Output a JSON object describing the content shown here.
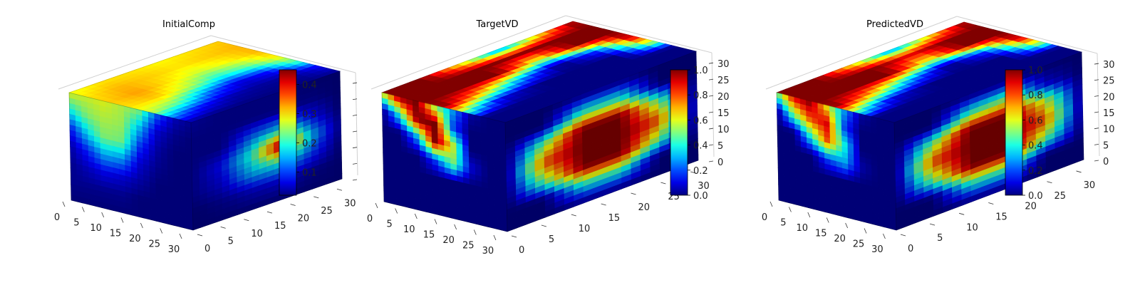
{
  "chart_data": [
    {
      "type": "3d-voxel",
      "title": "InitialComp",
      "xticks": [
        "0",
        "5",
        "10",
        "15",
        "20",
        "25",
        "30"
      ],
      "yticks": [
        "0",
        "5",
        "10",
        "15",
        "20",
        "25",
        "30"
      ],
      "zticks": [
        "",
        "",
        "",
        "",
        "",
        "",
        ""
      ],
      "xlim": [
        0,
        32
      ],
      "ylim": [
        0,
        32
      ],
      "zlim": [
        0,
        32
      ],
      "colormap": "jet",
      "colorbar": {
        "ticks": [
          "0.1",
          "0.2",
          "0.3",
          "0.4"
        ],
        "tick_values": [
          0.1,
          0.2,
          0.3,
          0.4
        ],
        "range": [
          0.02,
          0.45
        ]
      },
      "faces": {
        "top": [
          [
            0.28,
            0.3,
            0.31,
            0.3,
            0.27,
            0.14,
            0.03
          ],
          [
            0.3,
            0.32,
            0.33,
            0.31,
            0.22,
            0.08,
            0.02
          ],
          [
            0.3,
            0.31,
            0.3,
            0.26,
            0.12,
            0.04,
            0.02
          ],
          [
            0.29,
            0.3,
            0.27,
            0.19,
            0.06,
            0.03,
            0.02
          ],
          [
            0.3,
            0.31,
            0.29,
            0.22,
            0.08,
            0.03,
            0.02
          ],
          [
            0.31,
            0.32,
            0.32,
            0.3,
            0.22,
            0.07,
            0.03
          ]
        ],
        "front": [
          [
            0.28,
            0.27,
            0.28,
            0.26,
            0.24,
            0.12,
            0.05,
            0.03
          ],
          [
            0.18,
            0.24,
            0.26,
            0.25,
            0.16,
            0.06,
            0.03,
            0.02
          ],
          [
            0.08,
            0.17,
            0.24,
            0.23,
            0.1,
            0.04,
            0.02,
            0.02
          ],
          [
            0.04,
            0.09,
            0.15,
            0.14,
            0.06,
            0.03,
            0.02,
            0.02
          ],
          [
            0.03,
            0.05,
            0.07,
            0.06,
            0.04,
            0.02,
            0.02,
            0.02
          ],
          [
            0.03,
            0.03,
            0.03,
            0.03,
            0.02,
            0.02,
            0.02,
            0.02
          ],
          [
            0.02,
            0.02,
            0.02,
            0.02,
            0.02,
            0.02,
            0.02,
            0.02
          ]
        ],
        "side": [
          [
            0.04,
            0.03,
            0.03,
            0.03,
            0.02,
            0.02
          ],
          [
            0.03,
            0.03,
            0.03,
            0.03,
            0.03,
            0.02
          ],
          [
            0.03,
            0.03,
            0.12,
            0.16,
            0.08,
            0.02
          ],
          [
            0.03,
            0.08,
            0.2,
            0.45,
            0.16,
            0.03
          ],
          [
            0.03,
            0.06,
            0.15,
            0.18,
            0.1,
            0.02
          ],
          [
            0.02,
            0.03,
            0.05,
            0.06,
            0.03,
            0.02
          ],
          [
            0.02,
            0.02,
            0.02,
            0.02,
            0.02,
            0.02
          ]
        ]
      }
    },
    {
      "type": "3d-voxel",
      "title": "TargetVD",
      "xticks": [
        "0",
        "5",
        "10",
        "15",
        "20",
        "25",
        "30"
      ],
      "yticks": [
        "0",
        "5",
        "10",
        "15",
        "20",
        "25",
        "30"
      ],
      "zticks": [
        "0",
        "5",
        "10",
        "15",
        "20",
        "25",
        "30"
      ],
      "xlim": [
        0,
        32
      ],
      "ylim": [
        0,
        32
      ],
      "zlim": [
        0,
        32
      ],
      "colormap": "jet",
      "colorbar": {
        "ticks": [
          "0.0",
          "0.2",
          "0.4",
          "0.6",
          "0.8",
          "1.0"
        ],
        "tick_values": [
          0,
          0.2,
          0.4,
          0.6,
          0.8,
          1.0
        ],
        "range": [
          0,
          1
        ]
      },
      "faces": {
        "top": [
          [
            1.0,
            1.0,
            1.0,
            1.0,
            0.5,
            0.0,
            0.0
          ],
          [
            1.0,
            1.0,
            1.0,
            0.7,
            0.1,
            0.0,
            0.0
          ],
          [
            0.6,
            1.0,
            1.0,
            0.3,
            0.0,
            0.0,
            0.0
          ],
          [
            0.2,
            1.0,
            0.6,
            0.0,
            0.0,
            0.0,
            0.0
          ],
          [
            0.6,
            1.0,
            1.0,
            0.2,
            0.0,
            0.0,
            0.0
          ],
          [
            1.0,
            1.0,
            1.0,
            1.0,
            0.6,
            0.0,
            0.0
          ]
        ],
        "front": [
          [
            0.6,
            1.0,
            1.0,
            0.5,
            0.3,
            0.05,
            0.0,
            0.0
          ],
          [
            0.0,
            0.4,
            1.0,
            1.0,
            0.2,
            0.0,
            0.0,
            0.0
          ],
          [
            0.0,
            0.0,
            0.3,
            1.0,
            0.6,
            0.0,
            0.0,
            0.0
          ],
          [
            0.0,
            0.0,
            0.0,
            0.2,
            0.5,
            0.1,
            0.0,
            0.0
          ],
          [
            0.0,
            0.0,
            0.0,
            0.0,
            0.0,
            0.0,
            0.0,
            0.0
          ],
          [
            0.0,
            0.0,
            0.0,
            0.0,
            0.0,
            0.0,
            0.0,
            0.0
          ],
          [
            0.0,
            0.0,
            0.0,
            0.0,
            0.0,
            0.0,
            0.0,
            0.0
          ]
        ],
        "side": [
          [
            0.0,
            0.0,
            0.0,
            0.0,
            0.0,
            0.0
          ],
          [
            0.0,
            0.0,
            0.4,
            0.4,
            0.0,
            0.0
          ],
          [
            0.0,
            0.5,
            1.0,
            1.0,
            0.5,
            0.0
          ],
          [
            0.0,
            0.8,
            1.0,
            1.0,
            0.8,
            0.0
          ],
          [
            0.0,
            0.5,
            1.0,
            1.0,
            0.5,
            0.0
          ],
          [
            0.0,
            0.0,
            0.4,
            0.4,
            0.0,
            0.0
          ],
          [
            0.0,
            0.0,
            0.0,
            0.0,
            0.0,
            0.0
          ]
        ]
      }
    },
    {
      "type": "3d-voxel",
      "title": "PredictedVD",
      "xticks": [
        "0",
        "5",
        "10",
        "15",
        "20",
        "25",
        "30"
      ],
      "yticks": [
        "0",
        "5",
        "10",
        "15",
        "20",
        "25",
        "30"
      ],
      "zticks": [
        "0",
        "5",
        "10",
        "15",
        "20",
        "25",
        "30"
      ],
      "xlim": [
        0,
        32
      ],
      "ylim": [
        0,
        32
      ],
      "zlim": [
        0,
        32
      ],
      "colormap": "jet",
      "colorbar": {
        "ticks": [
          "0.0",
          "0.2",
          "0.4",
          "0.6",
          "0.8",
          "1.0"
        ],
        "tick_values": [
          0,
          0.2,
          0.4,
          0.6,
          0.8,
          1.0
        ],
        "range": [
          0,
          1
        ]
      },
      "faces": {
        "top": [
          [
            1.0,
            1.0,
            1.0,
            1.0,
            0.5,
            0.0,
            0.0
          ],
          [
            1.0,
            1.0,
            1.0,
            0.7,
            0.1,
            0.0,
            0.0
          ],
          [
            0.6,
            1.0,
            1.0,
            0.3,
            0.0,
            0.0,
            0.0
          ],
          [
            0.2,
            0.9,
            0.6,
            0.0,
            0.0,
            0.0,
            0.0
          ],
          [
            0.6,
            1.0,
            1.0,
            0.2,
            0.0,
            0.0,
            0.0
          ],
          [
            1.0,
            1.0,
            1.0,
            1.0,
            0.6,
            0.0,
            0.0
          ]
        ],
        "front": [
          [
            0.5,
            0.9,
            1.0,
            0.6,
            0.3,
            0.05,
            0.0,
            0.0
          ],
          [
            0.0,
            0.5,
            0.8,
            0.9,
            0.2,
            0.0,
            0.0,
            0.0
          ],
          [
            0.0,
            0.0,
            0.4,
            0.8,
            0.4,
            0.0,
            0.0,
            0.0
          ],
          [
            0.0,
            0.0,
            0.0,
            0.2,
            0.3,
            0.05,
            0.0,
            0.0
          ],
          [
            0.0,
            0.0,
            0.0,
            0.0,
            0.0,
            0.0,
            0.0,
            0.0
          ],
          [
            0.0,
            0.0,
            0.0,
            0.0,
            0.0,
            0.0,
            0.0,
            0.0
          ],
          [
            0.0,
            0.0,
            0.0,
            0.0,
            0.0,
            0.0,
            0.0,
            0.0
          ]
        ],
        "side": [
          [
            0.0,
            0.0,
            0.0,
            0.0,
            0.0,
            0.0
          ],
          [
            0.0,
            0.0,
            0.4,
            0.5,
            0.1,
            0.0
          ],
          [
            0.0,
            0.5,
            1.0,
            1.0,
            0.6,
            0.0
          ],
          [
            0.0,
            0.8,
            1.0,
            1.0,
            0.8,
            0.0
          ],
          [
            0.0,
            0.5,
            1.0,
            1.0,
            0.5,
            0.0
          ],
          [
            0.0,
            0.0,
            0.4,
            0.4,
            0.0,
            0.0
          ],
          [
            0.0,
            0.0,
            0.0,
            0.0,
            0.0,
            0.0
          ]
        ]
      }
    }
  ]
}
